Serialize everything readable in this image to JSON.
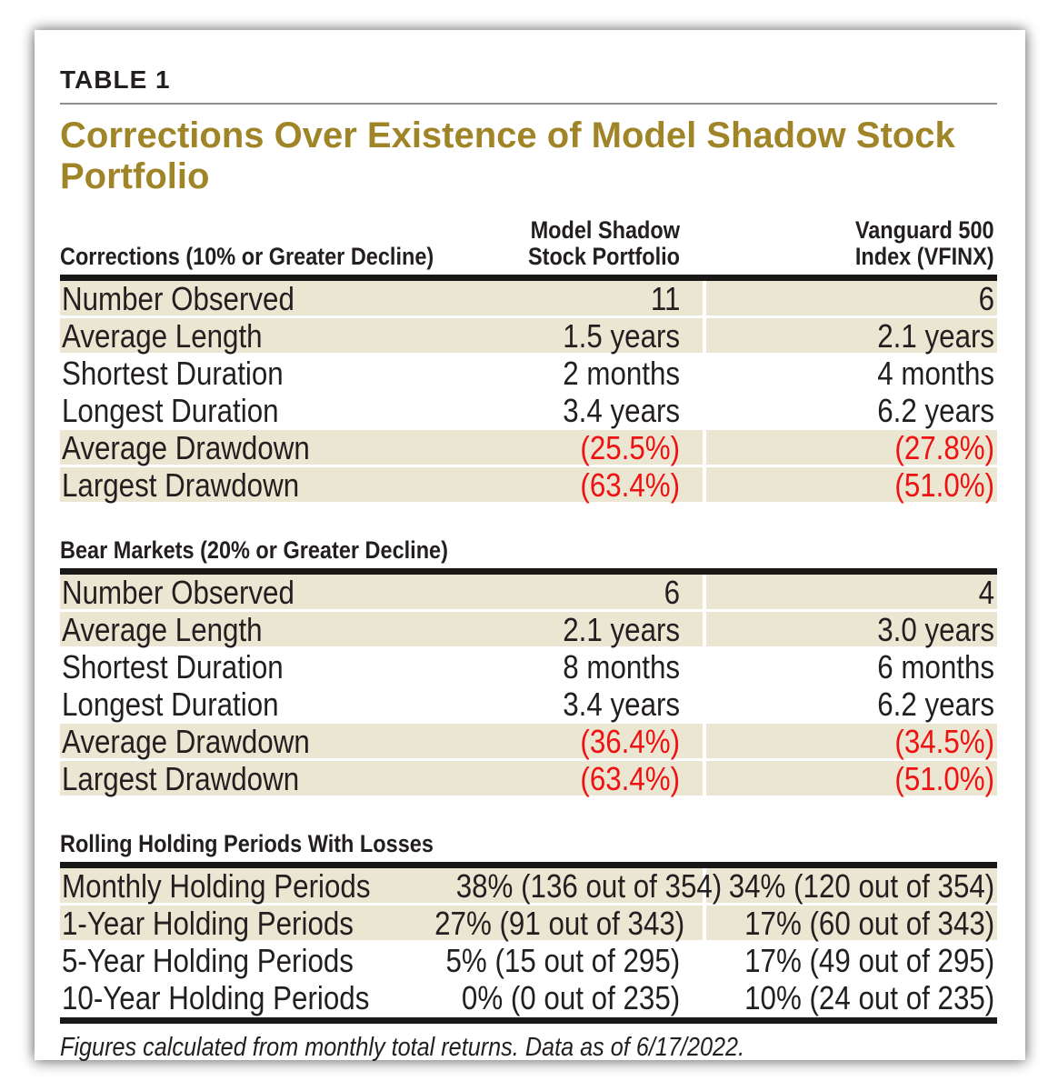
{
  "page": {
    "table_label": "TABLE 1",
    "title": "Corrections Over Existence of Model Shadow Stock Portfolio",
    "footnote": "Figures calculated from monthly total returns. Data as of 6/17/2022."
  },
  "columns": {
    "col2_line1": "Model Shadow",
    "col2_line2": "Stock Portfolio",
    "col3_line1": "Vanguard 500",
    "col3_line2": "Index (VFINX)"
  },
  "sections": [
    {
      "header": "Corrections (10% or Greater Decline)",
      "rows": [
        {
          "label": "Number Observed",
          "v1": "11",
          "v2": "6",
          "shade": true,
          "red": false
        },
        {
          "label": "Average Length",
          "v1": "1.5 years",
          "v2": "2.1 years",
          "shade": true,
          "red": false
        },
        {
          "label": "Shortest Duration",
          "v1": "2 months",
          "v2": "4 months",
          "shade": false,
          "red": false
        },
        {
          "label": "Longest Duration",
          "v1": "3.4 years",
          "v2": "6.2 years",
          "shade": false,
          "red": false
        },
        {
          "label": "Average Drawdown",
          "v1": "(25.5%)",
          "v2": "(27.8%)",
          "shade": true,
          "red": true
        },
        {
          "label": "Largest Drawdown",
          "v1": "(63.4%)",
          "v2": "(51.0%)",
          "shade": true,
          "red": true
        }
      ]
    },
    {
      "header": "Bear Markets (20% or Greater Decline)",
      "rows": [
        {
          "label": "Number Observed",
          "v1": "6",
          "v2": "4",
          "shade": true,
          "red": false
        },
        {
          "label": "Average Length",
          "v1": "2.1 years",
          "v2": "3.0 years",
          "shade": true,
          "red": false
        },
        {
          "label": "Shortest Duration",
          "v1": "8 months",
          "v2": "6 months",
          "shade": false,
          "red": false
        },
        {
          "label": "Longest Duration",
          "v1": "3.4 years",
          "v2": "6.2 years",
          "shade": false,
          "red": false
        },
        {
          "label": "Average Drawdown",
          "v1": "(36.4%)",
          "v2": "(34.5%)",
          "shade": true,
          "red": true
        },
        {
          "label": "Largest Drawdown",
          "v1": "(63.4%)",
          "v2": "(51.0%)",
          "shade": true,
          "red": true
        }
      ]
    },
    {
      "header": "Rolling Holding Periods With Losses",
      "rows": [
        {
          "label": "Monthly Holding Periods",
          "v1": "38% (136 out of 354)",
          "v2": "34% (120 out of 354)",
          "shade": true,
          "red": false
        },
        {
          "label": "1-Year Holding Periods",
          "v1": "27% (91 out of 343)",
          "v2": "17% (60 out of 343)",
          "shade": true,
          "red": false
        },
        {
          "label": "5-Year Holding Periods",
          "v1": "5% (15 out of 295)",
          "v2": "17% (49 out of 295)",
          "shade": false,
          "red": false
        },
        {
          "label": "10-Year Holding Periods",
          "v1": "0% (0 out of 235)",
          "v2": "10% (24 out of 235)",
          "shade": false,
          "red": false
        }
      ]
    }
  ],
  "colors": {
    "accent_gold": "#a08428",
    "row_shade": "#ebe6d2",
    "negative_red": "#ee1212",
    "text_black": "#231f20"
  }
}
